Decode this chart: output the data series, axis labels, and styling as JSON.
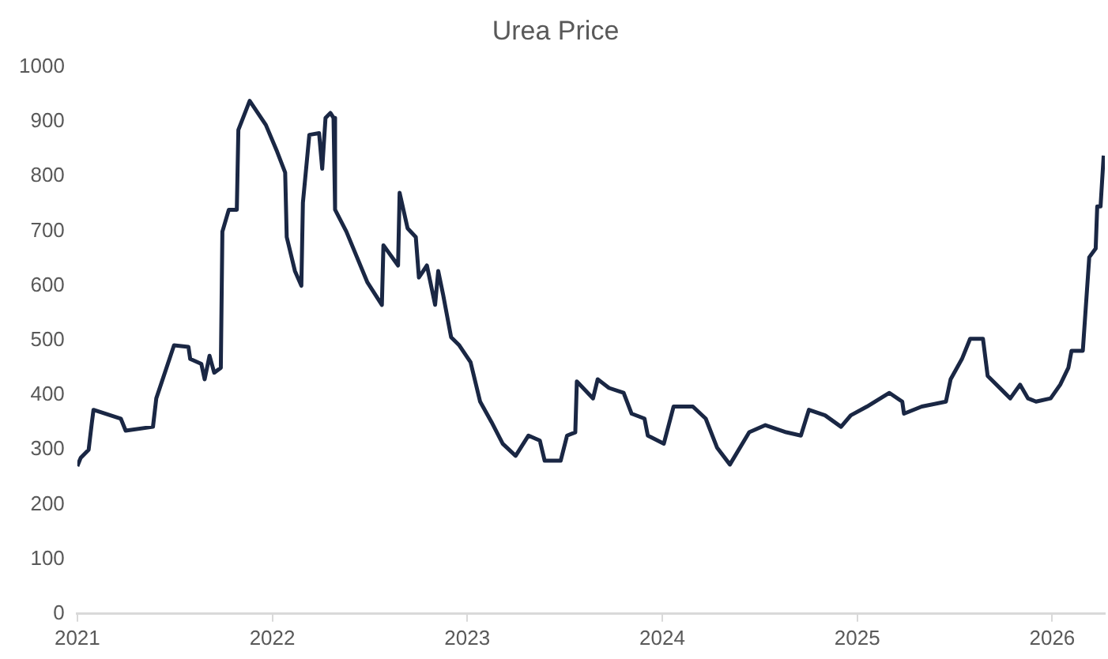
{
  "chart_data": {
    "type": "line",
    "title": "Urea Price",
    "x": [
      2021.0,
      2021.017,
      2021.058,
      2021.074,
      2021.083,
      2021.223,
      2021.248,
      2021.388,
      2021.405,
      2021.496,
      2021.57,
      2021.579,
      2021.636,
      2021.653,
      2021.678,
      2021.702,
      2021.736,
      2021.744,
      2021.777,
      2021.818,
      2021.826,
      2021.884,
      2021.967,
      2022.025,
      2022.066,
      2022.074,
      2022.116,
      2022.149,
      2022.157,
      2022.19,
      2022.24,
      2022.256,
      2022.273,
      2022.298,
      2022.314,
      2022.322,
      2022.38,
      2022.488,
      2022.562,
      2022.57,
      2022.645,
      2022.653,
      2022.694,
      2022.736,
      2022.752,
      2022.793,
      2022.835,
      2022.851,
      2022.876,
      2022.917,
      2022.959,
      2023.017,
      2023.066,
      2023.124,
      2023.182,
      2023.248,
      2023.314,
      2023.372,
      2023.397,
      2023.479,
      2023.512,
      2023.554,
      2023.562,
      2023.645,
      2023.669,
      2023.727,
      2023.802,
      2023.843,
      2023.909,
      2023.926,
      2024.008,
      2024.058,
      2024.157,
      2024.223,
      2024.281,
      2024.347,
      2024.446,
      2024.529,
      2024.636,
      2024.711,
      2024.752,
      2024.835,
      2024.917,
      2024.967,
      2025.05,
      2025.165,
      2025.231,
      2025.24,
      2025.331,
      2025.455,
      2025.479,
      2025.537,
      2025.579,
      2025.645,
      2025.669,
      2025.785,
      2025.835,
      2025.876,
      2025.917,
      2025.992,
      2026.041,
      2026.083,
      2026.099,
      2026.157,
      2026.19,
      2026.223,
      2026.231,
      2026.248,
      2026.264
    ],
    "series": [
      {
        "color": "#1a2744",
        "values": [
          270,
          285,
          300,
          348,
          373,
          357,
          335,
          342,
          394,
          491,
          488,
          466,
          457,
          429,
          472,
          441,
          450,
          699,
          739,
          739,
          885,
          938,
          894,
          845,
          807,
          689,
          627,
          600,
          752,
          876,
          879,
          814,
          907,
          916,
          907,
          739,
          699,
          606,
          565,
          674,
          637,
          770,
          705,
          689,
          615,
          637,
          565,
          627,
          584,
          506,
          491,
          460,
          388,
          351,
          311,
          289,
          326,
          317,
          280,
          280,
          326,
          332,
          425,
          394,
          429,
          413,
          404,
          366,
          357,
          326,
          311,
          379,
          379,
          357,
          304,
          273,
          332,
          345,
          332,
          326,
          373,
          363,
          342,
          363,
          379,
          404,
          388,
          366,
          379,
          388,
          429,
          466,
          503,
          503,
          435,
          394,
          419,
          394,
          388,
          394,
          419,
          450,
          481,
          481,
          652,
          668,
          745,
          745,
          838
        ]
      }
    ],
    "xlim": [
      2021,
      2026.27
    ],
    "xticks": [
      2021,
      2022,
      2023,
      2024,
      2025,
      2026
    ],
    "ylim": [
      0,
      1000
    ],
    "yticks": [
      0,
      100,
      200,
      300,
      400,
      500,
      600,
      700,
      800,
      900,
      1000
    ],
    "grid": false,
    "legend": false,
    "marker": "none",
    "line_style": "solid"
  }
}
